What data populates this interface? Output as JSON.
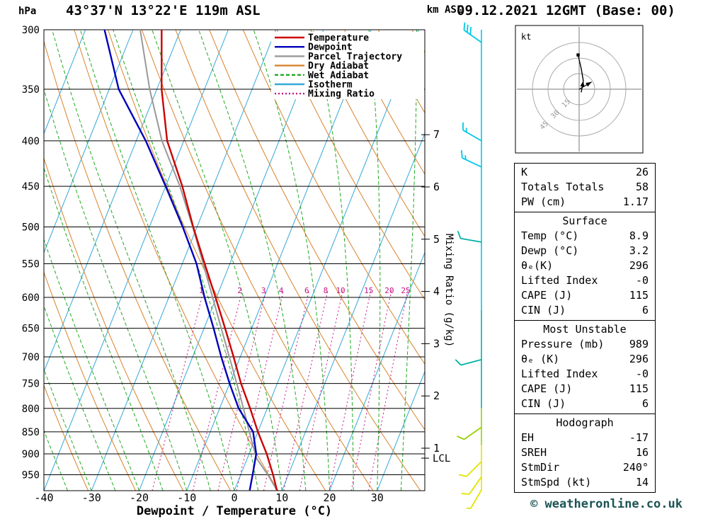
{
  "header": {
    "station": "43°37'N 13°22'E 119m ASL",
    "datetime": "09.12.2021 12GMT (Base: 00)"
  },
  "labels": {
    "pressure_unit": "hPa",
    "km_axis": "km ASL",
    "x_axis": "Dewpoint / Temperature (°C)",
    "mixing_axis": "Mixing Ratio (g/kg)",
    "lcl": "LCL",
    "copyright": "© weatheronline.co.uk"
  },
  "legend": {
    "items": [
      {
        "label": "Temperature",
        "color": "#cc0000",
        "dash": ""
      },
      {
        "label": "Dewpoint",
        "color": "#0000bb",
        "dash": ""
      },
      {
        "label": "Parcel Trajectory",
        "color": "#999999",
        "dash": ""
      },
      {
        "label": "Dry Adiabat",
        "color": "#d9822b",
        "dash": ""
      },
      {
        "label": "Wet Adiabat",
        "color": "#22aa22",
        "dash": "5 3"
      },
      {
        "label": "Isotherm",
        "color": "#35a8d8",
        "dash": ""
      },
      {
        "label": "Mixing Ratio",
        "color": "#C71585",
        "dash": "2 3"
      }
    ]
  },
  "chart_data": {
    "type": "skewt_log_p",
    "pressure_ticks": [
      300,
      350,
      400,
      450,
      500,
      550,
      600,
      650,
      700,
      750,
      800,
      850,
      900,
      950
    ],
    "pressure_range": [
      300,
      990
    ],
    "temp_ticks": [
      -40,
      -30,
      -20,
      -10,
      0,
      10,
      20,
      30
    ],
    "temp_range": [
      -40,
      40
    ],
    "km_ticks": [
      1,
      2,
      3,
      4,
      5,
      6,
      7
    ],
    "lcl_pressure": 910,
    "mixing_ratio_gkg": [
      1,
      2,
      3,
      4,
      6,
      8,
      10,
      15,
      20,
      25
    ],
    "colors": {
      "isotherm": "#35a8d8",
      "dry_adiabat": "#d9822b",
      "wet_adiabat": "#22aa22",
      "mixing_ratio": "#C71585",
      "grid": "#000000"
    },
    "series": {
      "temperature": {
        "color": "#cc0000",
        "points": [
          [
            989,
            8.9
          ],
          [
            950,
            6.8
          ],
          [
            900,
            3.7
          ],
          [
            850,
            0.0
          ],
          [
            800,
            -3.6
          ],
          [
            750,
            -7.6
          ],
          [
            700,
            -11.4
          ],
          [
            650,
            -15.6
          ],
          [
            600,
            -20.2
          ],
          [
            550,
            -25.3
          ],
          [
            500,
            -30.8
          ],
          [
            450,
            -36.5
          ],
          [
            400,
            -43.5
          ],
          [
            350,
            -49.0
          ],
          [
            300,
            -54.0
          ]
        ]
      },
      "dewpoint": {
        "color": "#0000bb",
        "points": [
          [
            989,
            3.2
          ],
          [
            950,
            2.5
          ],
          [
            900,
            1.5
          ],
          [
            850,
            -1.0
          ],
          [
            800,
            -6.0
          ],
          [
            750,
            -10.0
          ],
          [
            700,
            -14.0
          ],
          [
            650,
            -18.0
          ],
          [
            600,
            -22.5
          ],
          [
            550,
            -27.0
          ],
          [
            500,
            -33.0
          ],
          [
            450,
            -40.0
          ],
          [
            400,
            -48.0
          ],
          [
            350,
            -58.0
          ],
          [
            300,
            -66.0
          ]
        ]
      },
      "parcel": {
        "color": "#999999",
        "points": [
          [
            989,
            8.9
          ],
          [
            950,
            5.7
          ],
          [
            910,
            1.9
          ],
          [
            850,
            -1.8
          ],
          [
            800,
            -5.0
          ],
          [
            750,
            -8.5
          ],
          [
            700,
            -12.3
          ],
          [
            650,
            -16.4
          ],
          [
            600,
            -20.8
          ],
          [
            550,
            -25.6
          ],
          [
            500,
            -30.9
          ],
          [
            450,
            -37.0
          ],
          [
            400,
            -44.6
          ],
          [
            350,
            -51.5
          ],
          [
            300,
            -58.5
          ]
        ]
      }
    },
    "wind_barbs": [
      {
        "p": 310,
        "spd": 30,
        "dir": 305,
        "color": "#00c9e8"
      },
      {
        "p": 400,
        "spd": 15,
        "dir": 300,
        "color": "#00c9e8"
      },
      {
        "p": 428,
        "spd": 15,
        "dir": 295,
        "color": "#00c9e8"
      },
      {
        "p": 520,
        "spd": 10,
        "dir": 280,
        "color": "#00b2a5"
      },
      {
        "p": 705,
        "spd": 10,
        "dir": 255,
        "color": "#00b2a5"
      },
      {
        "p": 840,
        "spd": 10,
        "dir": 235,
        "color": "#9ad000"
      },
      {
        "p": 918,
        "spd": 10,
        "dir": 225,
        "color": "#e3e300"
      },
      {
        "p": 955,
        "spd": 10,
        "dir": 215,
        "color": "#e3e300"
      },
      {
        "p": 988,
        "spd": 5,
        "dir": 210,
        "color": "#e3e300"
      }
    ],
    "barb_axis_bands": [
      {
        "p1": 300,
        "p2": 620,
        "color": "#00c9e8"
      },
      {
        "p1": 620,
        "p2": 800,
        "color": "#00b2a5"
      },
      {
        "p1": 800,
        "p2": 880,
        "color": "#9ad000"
      },
      {
        "p1": 880,
        "p2": 990,
        "color": "#e3e300"
      }
    ]
  },
  "hodograph": {
    "unit": "kt",
    "rings": [
      15,
      30,
      45
    ],
    "trace_kt": [
      [
        2,
        -3
      ],
      [
        4,
        8
      ],
      [
        2,
        20
      ],
      [
        -1,
        33
      ]
    ],
    "storm_kt": [
      12,
      7
    ]
  },
  "stats": {
    "sections": [
      {
        "title": "",
        "rows": [
          [
            "K",
            "26"
          ],
          [
            "Totals Totals",
            "58"
          ],
          [
            "PW (cm)",
            "1.17"
          ]
        ]
      },
      {
        "title": "Surface",
        "rows": [
          [
            "Temp (°C)",
            "8.9"
          ],
          [
            "Dewp (°C)",
            "3.2"
          ],
          [
            "θₑ(K)",
            "296"
          ],
          [
            "Lifted Index",
            "-0"
          ],
          [
            "CAPE (J)",
            "115"
          ],
          [
            "CIN (J)",
            "6"
          ]
        ]
      },
      {
        "title": "Most Unstable",
        "rows": [
          [
            "Pressure (mb)",
            "989"
          ],
          [
            "θₑ (K)",
            "296"
          ],
          [
            "Lifted Index",
            "-0"
          ],
          [
            "CAPE (J)",
            "115"
          ],
          [
            "CIN (J)",
            "6"
          ]
        ]
      },
      {
        "title": "Hodograph",
        "rows": [
          [
            "EH",
            "-17"
          ],
          [
            "SREH",
            "16"
          ],
          [
            "StmDir",
            "240°"
          ],
          [
            "StmSpd (kt)",
            "14"
          ]
        ]
      }
    ]
  }
}
